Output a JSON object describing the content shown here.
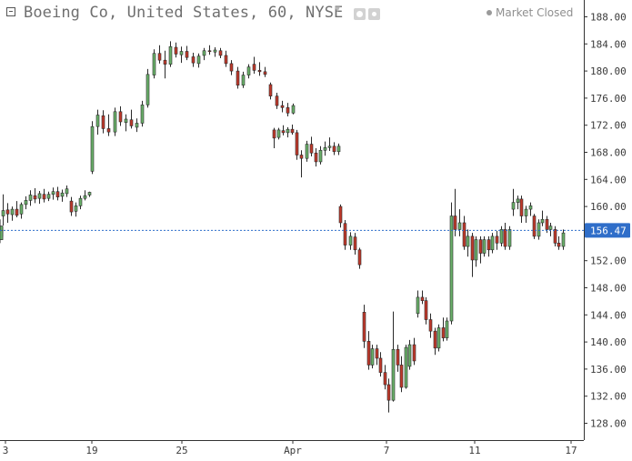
{
  "header": {
    "title": "Boeing Co, United States, 60, NYSE",
    "market_status": "Market Closed"
  },
  "colors": {
    "up_body": "#6ab06a",
    "down_body": "#c0392b",
    "wick": "#2a2a2a",
    "last_price_line": "#2f6ec9",
    "last_price_bg": "#2f6ec9",
    "axis": "#333333"
  },
  "icons": [
    "collapse-icon",
    "caret-down-icon",
    "eye-icon",
    "gear-icon",
    "status-dot-icon"
  ],
  "chart_data": {
    "type": "candlestick",
    "symbol": "Boeing Co",
    "interval": "60",
    "exchange": "NYSE",
    "ylim": [
      126,
      190
    ],
    "price_ticks": [
      "188.00",
      "184.00",
      "180.00",
      "176.00",
      "172.00",
      "168.00",
      "164.00",
      "160.00",
      "156.00",
      "152.00",
      "148.00",
      "144.00",
      "140.00",
      "136.00",
      "132.00",
      "128.00"
    ],
    "date_ticks": [
      "3",
      "19",
      "25",
      "Apr",
      "7",
      "11",
      "17"
    ],
    "last_price": 156.47,
    "last_price_label": "156.47",
    "candles": [
      {
        "o": 158.6,
        "h": 161.8,
        "l": 157.2,
        "c": 159.4
      },
      {
        "o": 159.5,
        "h": 160.5,
        "l": 157.6,
        "c": 158.9
      },
      {
        "o": 158.8,
        "h": 160.0,
        "l": 157.9,
        "c": 159.6
      },
      {
        "o": 159.6,
        "h": 160.8,
        "l": 158.4,
        "c": 158.7
      },
      {
        "o": 158.9,
        "h": 160.6,
        "l": 158.2,
        "c": 160.3
      },
      {
        "o": 160.3,
        "h": 161.5,
        "l": 159.6,
        "c": 160.9
      },
      {
        "o": 160.9,
        "h": 162.4,
        "l": 160.1,
        "c": 161.7
      },
      {
        "o": 161.6,
        "h": 162.7,
        "l": 160.5,
        "c": 161.1
      },
      {
        "o": 161.2,
        "h": 162.3,
        "l": 160.4,
        "c": 161.9
      },
      {
        "o": 161.8,
        "h": 162.6,
        "l": 160.6,
        "c": 161.1
      },
      {
        "o": 161.2,
        "h": 162.2,
        "l": 160.8,
        "c": 161.8
      },
      {
        "o": 161.8,
        "h": 162.8,
        "l": 161.0,
        "c": 162.2
      },
      {
        "o": 162.2,
        "h": 162.9,
        "l": 160.9,
        "c": 161.4
      },
      {
        "o": 161.5,
        "h": 162.5,
        "l": 160.7,
        "c": 162.0
      },
      {
        "o": 161.9,
        "h": 163.1,
        "l": 161.4,
        "c": 162.6
      },
      {
        "o": 160.8,
        "h": 161.4,
        "l": 158.6,
        "c": 159.2
      },
      {
        "o": 159.3,
        "h": 160.6,
        "l": 158.5,
        "c": 160.1
      },
      {
        "o": 160.1,
        "h": 161.6,
        "l": 159.6,
        "c": 161.2
      },
      {
        "o": 161.2,
        "h": 162.4,
        "l": 160.9,
        "c": 161.6
      },
      {
        "o": 161.7,
        "h": 162.2,
        "l": 161.4,
        "c": 162.1
      },
      {
        "o": 165.2,
        "h": 172.6,
        "l": 164.8,
        "c": 171.8
      },
      {
        "o": 171.8,
        "h": 174.3,
        "l": 170.6,
        "c": 173.5
      },
      {
        "o": 173.4,
        "h": 174.2,
        "l": 170.8,
        "c": 171.5
      },
      {
        "o": 171.5,
        "h": 173.6,
        "l": 170.4,
        "c": 171.0
      },
      {
        "o": 171.0,
        "h": 174.6,
        "l": 170.4,
        "c": 174.0
      },
      {
        "o": 174.0,
        "h": 174.8,
        "l": 171.9,
        "c": 172.5
      },
      {
        "o": 172.4,
        "h": 173.6,
        "l": 171.1,
        "c": 172.9
      },
      {
        "o": 172.8,
        "h": 174.3,
        "l": 171.5,
        "c": 171.9
      },
      {
        "o": 171.7,
        "h": 173.0,
        "l": 171.0,
        "c": 172.3
      },
      {
        "o": 172.3,
        "h": 175.6,
        "l": 171.8,
        "c": 175.0
      },
      {
        "o": 175.0,
        "h": 180.3,
        "l": 174.6,
        "c": 179.5
      },
      {
        "o": 179.4,
        "h": 183.2,
        "l": 178.9,
        "c": 182.6
      },
      {
        "o": 182.6,
        "h": 183.8,
        "l": 181.1,
        "c": 181.6
      },
      {
        "o": 181.6,
        "h": 183.0,
        "l": 178.9,
        "c": 181.0
      },
      {
        "o": 181.0,
        "h": 184.4,
        "l": 180.6,
        "c": 183.6
      },
      {
        "o": 183.5,
        "h": 184.2,
        "l": 182.0,
        "c": 182.5
      },
      {
        "o": 182.4,
        "h": 183.6,
        "l": 181.2,
        "c": 182.9
      },
      {
        "o": 182.9,
        "h": 183.7,
        "l": 181.6,
        "c": 182.0
      },
      {
        "o": 182.1,
        "h": 182.7,
        "l": 180.6,
        "c": 181.2
      },
      {
        "o": 181.1,
        "h": 182.6,
        "l": 180.5,
        "c": 182.2
      },
      {
        "o": 182.3,
        "h": 183.4,
        "l": 181.6,
        "c": 183.0
      },
      {
        "o": 183.0,
        "h": 183.8,
        "l": 182.4,
        "c": 182.9
      },
      {
        "o": 182.8,
        "h": 183.5,
        "l": 182.1,
        "c": 183.1
      },
      {
        "o": 183.0,
        "h": 183.4,
        "l": 181.9,
        "c": 182.3
      },
      {
        "o": 182.3,
        "h": 183.0,
        "l": 180.6,
        "c": 181.1
      },
      {
        "o": 181.1,
        "h": 181.6,
        "l": 179.4,
        "c": 180.0
      },
      {
        "o": 180.0,
        "h": 180.6,
        "l": 177.4,
        "c": 177.9
      },
      {
        "o": 177.9,
        "h": 179.9,
        "l": 177.5,
        "c": 179.4
      },
      {
        "o": 179.4,
        "h": 181.0,
        "l": 178.9,
        "c": 180.6
      },
      {
        "o": 181.0,
        "h": 182.1,
        "l": 179.6,
        "c": 180.1
      },
      {
        "o": 180.1,
        "h": 181.3,
        "l": 179.3,
        "c": 179.9
      },
      {
        "o": 179.9,
        "h": 180.6,
        "l": 179.1,
        "c": 179.5
      },
      {
        "o": 178.0,
        "h": 178.3,
        "l": 175.8,
        "c": 176.3
      },
      {
        "o": 176.3,
        "h": 176.8,
        "l": 174.4,
        "c": 174.9
      },
      {
        "o": 174.9,
        "h": 175.6,
        "l": 173.9,
        "c": 174.6
      },
      {
        "o": 174.6,
        "h": 175.3,
        "l": 173.3,
        "c": 173.8
      },
      {
        "o": 173.8,
        "h": 175.2,
        "l": 173.6,
        "c": 174.9
      },
      {
        "o": 171.3,
        "h": 171.6,
        "l": 168.6,
        "c": 170.1
      },
      {
        "o": 170.2,
        "h": 171.6,
        "l": 169.9,
        "c": 171.3
      },
      {
        "o": 171.2,
        "h": 172.0,
        "l": 170.5,
        "c": 170.9
      },
      {
        "o": 170.9,
        "h": 171.7,
        "l": 170.2,
        "c": 171.4
      },
      {
        "o": 171.4,
        "h": 172.1,
        "l": 170.6,
        "c": 170.9
      },
      {
        "o": 170.9,
        "h": 171.3,
        "l": 166.9,
        "c": 167.6
      },
      {
        "o": 167.6,
        "h": 168.3,
        "l": 164.3,
        "c": 167.1
      },
      {
        "o": 167.1,
        "h": 169.7,
        "l": 166.6,
        "c": 169.2
      },
      {
        "o": 169.2,
        "h": 170.3,
        "l": 167.4,
        "c": 167.9
      },
      {
        "o": 167.9,
        "h": 168.6,
        "l": 165.9,
        "c": 166.6
      },
      {
        "o": 166.6,
        "h": 168.9,
        "l": 166.2,
        "c": 168.3
      },
      {
        "o": 168.3,
        "h": 169.6,
        "l": 167.5,
        "c": 168.7
      },
      {
        "o": 168.7,
        "h": 170.2,
        "l": 168.2,
        "c": 168.9
      },
      {
        "o": 168.9,
        "h": 169.5,
        "l": 167.6,
        "c": 168.1
      },
      {
        "o": 168.1,
        "h": 169.3,
        "l": 167.6,
        "c": 168.9
      },
      {
        "o": 160.0,
        "h": 160.3,
        "l": 156.9,
        "c": 157.6
      },
      {
        "o": 157.5,
        "h": 158.0,
        "l": 153.6,
        "c": 154.3
      },
      {
        "o": 154.3,
        "h": 156.2,
        "l": 153.6,
        "c": 155.6
      },
      {
        "o": 155.5,
        "h": 156.1,
        "l": 152.9,
        "c": 153.6
      },
      {
        "o": 153.6,
        "h": 153.9,
        "l": 150.8,
        "c": 151.4
      },
      {
        "o": 144.4,
        "h": 145.5,
        "l": 139.1,
        "c": 140.1
      },
      {
        "o": 140.1,
        "h": 141.6,
        "l": 135.9,
        "c": 136.6
      },
      {
        "o": 136.6,
        "h": 139.6,
        "l": 136.1,
        "c": 139.0
      },
      {
        "o": 139.0,
        "h": 139.6,
        "l": 136.6,
        "c": 137.6
      },
      {
        "o": 137.6,
        "h": 138.5,
        "l": 134.9,
        "c": 135.5
      },
      {
        "o": 135.5,
        "h": 136.6,
        "l": 133.0,
        "c": 133.7
      },
      {
        "o": 133.7,
        "h": 134.6,
        "l": 129.6,
        "c": 131.4
      },
      {
        "o": 131.4,
        "h": 144.5,
        "l": 131.2,
        "c": 138.9
      },
      {
        "o": 138.9,
        "h": 139.6,
        "l": 135.6,
        "c": 136.6
      },
      {
        "o": 136.6,
        "h": 137.9,
        "l": 132.6,
        "c": 133.3
      },
      {
        "o": 133.3,
        "h": 139.6,
        "l": 133.1,
        "c": 139.2
      },
      {
        "o": 136.4,
        "h": 140.3,
        "l": 135.9,
        "c": 139.6
      },
      {
        "o": 139.6,
        "h": 140.6,
        "l": 136.6,
        "c": 137.2
      },
      {
        "o": 144.2,
        "h": 147.6,
        "l": 143.6,
        "c": 146.6
      },
      {
        "o": 146.6,
        "h": 147.6,
        "l": 145.6,
        "c": 146.1
      },
      {
        "o": 146.1,
        "h": 146.6,
        "l": 142.6,
        "c": 143.3
      },
      {
        "o": 143.3,
        "h": 144.2,
        "l": 140.6,
        "c": 141.6
      },
      {
        "o": 141.6,
        "h": 142.1,
        "l": 138.1,
        "c": 139.1
      },
      {
        "o": 139.1,
        "h": 142.6,
        "l": 138.6,
        "c": 142.1
      },
      {
        "o": 142.1,
        "h": 143.6,
        "l": 140.1,
        "c": 140.6
      },
      {
        "o": 140.6,
        "h": 143.6,
        "l": 140.2,
        "c": 143.1
      },
      {
        "o": 143.1,
        "h": 160.6,
        "l": 142.6,
        "c": 158.6
      },
      {
        "o": 158.6,
        "h": 162.6,
        "l": 155.6,
        "c": 156.6
      },
      {
        "o": 156.6,
        "h": 159.6,
        "l": 155.6,
        "c": 157.6
      },
      {
        "o": 157.6,
        "h": 158.6,
        "l": 153.6,
        "c": 154.1
      },
      {
        "o": 154.1,
        "h": 156.6,
        "l": 152.6,
        "c": 155.6
      },
      {
        "o": 155.6,
        "h": 156.1,
        "l": 149.6,
        "c": 152.1
      },
      {
        "o": 152.1,
        "h": 155.6,
        "l": 151.1,
        "c": 155.1
      },
      {
        "o": 155.1,
        "h": 155.6,
        "l": 151.6,
        "c": 153.1
      },
      {
        "o": 153.1,
        "h": 155.6,
        "l": 152.6,
        "c": 155.1
      },
      {
        "o": 155.1,
        "h": 155.6,
        "l": 152.6,
        "c": 153.6
      },
      {
        "o": 153.6,
        "h": 156.1,
        "l": 153.1,
        "c": 155.6
      },
      {
        "o": 155.6,
        "h": 156.4,
        "l": 153.6,
        "c": 154.6
      },
      {
        "o": 154.6,
        "h": 157.1,
        "l": 154.1,
        "c": 156.6
      },
      {
        "o": 156.6,
        "h": 157.6,
        "l": 153.6,
        "c": 154.1
      },
      {
        "o": 154.1,
        "h": 157.1,
        "l": 153.6,
        "c": 156.6
      },
      {
        "o": 159.6,
        "h": 162.6,
        "l": 158.6,
        "c": 160.6
      },
      {
        "o": 160.6,
        "h": 161.6,
        "l": 159.6,
        "c": 161.1
      },
      {
        "o": 161.1,
        "h": 161.6,
        "l": 157.6,
        "c": 158.6
      },
      {
        "o": 158.6,
        "h": 160.1,
        "l": 157.6,
        "c": 159.6
      },
      {
        "o": 159.6,
        "h": 160.6,
        "l": 158.6,
        "c": 160.1
      },
      {
        "o": 158.6,
        "h": 158.9,
        "l": 155.2,
        "c": 155.6
      },
      {
        "o": 155.6,
        "h": 158.1,
        "l": 155.1,
        "c": 157.6
      },
      {
        "o": 157.6,
        "h": 159.4,
        "l": 157.1,
        "c": 158.1
      },
      {
        "o": 158.1,
        "h": 158.6,
        "l": 156.1,
        "c": 156.6
      },
      {
        "o": 156.6,
        "h": 157.6,
        "l": 155.6,
        "c": 157.1
      },
      {
        "o": 156.6,
        "h": 157.1,
        "l": 154.1,
        "c": 154.6
      },
      {
        "o": 154.6,
        "h": 155.6,
        "l": 153.6,
        "c": 154.1
      },
      {
        "o": 154.1,
        "h": 156.6,
        "l": 153.6,
        "c": 156.1
      },
      {
        "o": 156.1,
        "h": 158.1,
        "l": 155.6,
        "c": 157.1
      },
      {
        "o": 157.1,
        "h": 157.6,
        "l": 155.1,
        "c": 155.6
      },
      {
        "o": 155.6,
        "h": 157.6,
        "l": 155.1,
        "c": 157.1
      },
      {
        "o": 156.1,
        "h": 156.6,
        "l": 154.6,
        "c": 155.1
      },
      {
        "o": 155.1,
        "h": 157.1,
        "l": 154.8,
        "c": 156.47
      }
    ]
  }
}
